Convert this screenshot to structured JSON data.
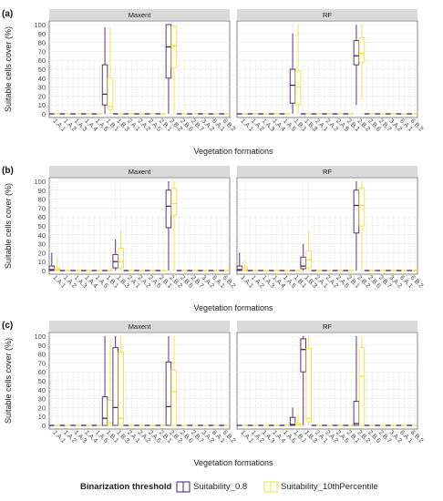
{
  "figure": {
    "panel_letters": [
      "(a)",
      "(b)",
      "(c)"
    ],
    "facets": [
      "Maxent",
      "RF"
    ],
    "ylabel": "Suitable cells cover (%)",
    "xlabel": "Vegetation formations",
    "legend_title": "Binarization threshold",
    "colors": {
      "Suitability_0.8": "#4B1D6B",
      "Suitability_10thPercentile": "#F2E03A",
      "outlier": "#B5B5B5",
      "strip": "#D9D9D9",
      "grid": "#EBEBEB"
    }
  },
  "chart_data": [
    {
      "panel": "(a)",
      "type": "boxplot",
      "ylim": [
        0,
        100
      ],
      "yticks": [
        0,
        10,
        20,
        30,
        40,
        50,
        60,
        70,
        80,
        90,
        100
      ],
      "grid": true,
      "categories": [
        "1.A.1",
        "1.A.2",
        "1.A.3",
        "1.A.4",
        "1.A.5",
        "1.B.1",
        "1.B.3",
        "2.A.1",
        "2.A.2",
        "2.A.5",
        "2.B.1",
        "2.B.2",
        "2.B.6",
        "2.B.7",
        "3.A.2",
        "6.A.1",
        "6.B.2"
      ],
      "series": [
        {
          "name": "Suitability_0.8",
          "facets": {
            "Maxent": {
              "1.B.1": [
                0,
                10,
                22,
                55,
                97
              ],
              "2.B.2": [
                0,
                40,
                75,
                100,
                100
              ]
            },
            "RF": {
              "1.B.1": [
                0,
                12,
                32,
                50,
                90
              ],
              "2.B.2": [
                10,
                55,
                65,
                82,
                100
              ]
            }
          }
        },
        {
          "name": "Suitability_10thPercentile",
          "facets": {
            "Maxent": {
              "1.B.1": [
                0,
                5,
                8,
                40,
                97
              ],
              "2.B.2": [
                0,
                52,
                76,
                98,
                100
              ]
            },
            "RF": {
              "1.B.1": [
                0,
                10,
                30,
                48,
                100
              ],
              "2.B.2": [
                15,
                58,
                68,
                85,
                100
              ]
            }
          }
        }
      ],
      "box_format": "[min, q1, median, q3, max]",
      "other_categories": "median ~0"
    },
    {
      "panel": "(b)",
      "type": "boxplot",
      "ylim": [
        0,
        100
      ],
      "yticks": [
        0,
        10,
        20,
        30,
        40,
        50,
        60,
        70,
        80,
        90,
        100
      ],
      "grid": true,
      "categories": [
        "1.A.1",
        "1.A.2",
        "1.A.3",
        "1.A.4",
        "1.A.5",
        "1.B.1",
        "1.B.3",
        "2.A.1",
        "2.A.2",
        "2.A.5",
        "2.B.1",
        "2.B.2",
        "2.B.6",
        "2.B.7",
        "3.A.2",
        "6.A.1",
        "6.B.2"
      ],
      "series": [
        {
          "name": "Suitability_0.8",
          "facets": {
            "Maxent": {
              "1.A.1": [
                0,
                0,
                1,
                5,
                20
              ],
              "1.B.3": [
                0,
                3,
                10,
                18,
                35
              ],
              "2.B.2": [
                0,
                48,
                72,
                90,
                100
              ]
            },
            "RF": {
              "1.A.1": [
                0,
                0,
                1,
                5,
                20
              ],
              "1.B.3": [
                0,
                2,
                5,
                15,
                30
              ],
              "2.B.2": [
                0,
                42,
                73,
                90,
                100
              ]
            }
          }
        },
        {
          "name": "Suitability_10thPercentile",
          "facets": {
            "Maxent": {
              "1.A.1": [
                0,
                0,
                1,
                3,
                15
              ],
              "1.B.3": [
                0,
                3,
                10,
                25,
                45
              ],
              "2.B.2": [
                0,
                62,
                75,
                92,
                100
              ]
            },
            "RF": {
              "1.A.1": [
                0,
                0,
                1,
                4,
                12
              ],
              "1.B.3": [
                0,
                3,
                12,
                22,
                45
              ],
              "2.B.2": [
                0,
                50,
                73,
                92,
                100
              ]
            }
          }
        }
      ],
      "box_format": "[min, q1, median, q3, max]",
      "other_categories": "median ~0"
    },
    {
      "panel": "(c)",
      "type": "boxplot",
      "ylim": [
        0,
        100
      ],
      "yticks": [
        0,
        10,
        20,
        30,
        40,
        50,
        60,
        70,
        80,
        90,
        100
      ],
      "grid": true,
      "categories": [
        "1.A.1",
        "1.A.2",
        "1.A.3",
        "1.A.4",
        "1.A.5",
        "1.B.1",
        "1.B.3",
        "2.A.1",
        "2.A.2",
        "2.A.5",
        "2.B.1",
        "2.B.2",
        "2.B.6",
        "2.B.7",
        "3.A.2",
        "6.A.1",
        "6.B.2"
      ],
      "series": [
        {
          "name": "Suitability_0.8",
          "facets": {
            "Maxent": {
              "1.B.1": [
                0,
                0,
                8,
                32,
                100
              ],
              "1.B.3": [
                0,
                0,
                20,
                87,
                100
              ],
              "2.B.2": [
                0,
                0,
                21,
                71,
                100
              ]
            },
            "RF": {
              "1.B.1": [
                0,
                0,
                1,
                9,
                20
              ],
              "1.B.3": [
                0,
                60,
                85,
                97,
                100
              ],
              "2.B.2": [
                0,
                0,
                2,
                27,
                100
              ]
            }
          }
        },
        {
          "name": "Suitability_10thPercentile",
          "facets": {
            "Maxent": {
              "1.B.1": [
                0,
                0,
                3,
                28,
                90
              ],
              "1.B.3": [
                0,
                0,
                8,
                82,
                100
              ],
              "2.B.2": [
                0,
                0,
                38,
                62,
                100
              ]
            },
            "RF": {
              "1.B.1": [
                0,
                0,
                1,
                3,
                12
              ],
              "1.B.3": [
                0,
                4,
                8,
                86,
                100
              ],
              "2.B.2": [
                0,
                0,
                55,
                87,
                100
              ]
            }
          }
        }
      ],
      "box_format": "[min, q1, median, q3, max]",
      "other_categories": "median ~0"
    }
  ],
  "legend": {
    "entries": [
      "Suitability_0.8",
      "Suitability_10thPercentile"
    ]
  }
}
